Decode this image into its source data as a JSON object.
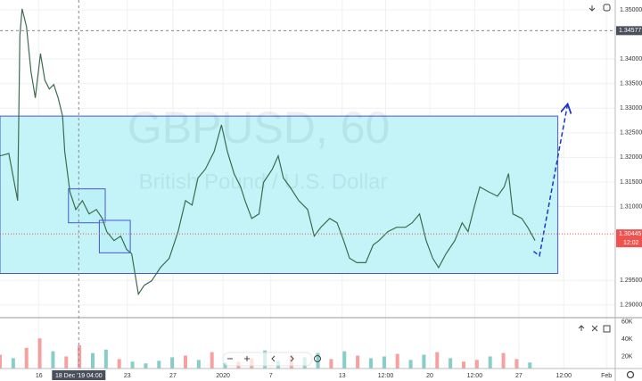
{
  "chart_data": {
    "type": "line",
    "symbol_title": "GBPUSD, 60",
    "symbol_description": "British Pound / U.S. Dollar",
    "color": "#3d6b4f",
    "xlim": [
      0,
      836
    ],
    "ylim": [
      1.2876,
      1.352
    ],
    "grid": true,
    "yticks": [
      {
        "value": 1.35,
        "label": "1.35000"
      },
      {
        "value": 1.34,
        "label": "1.34000"
      },
      {
        "value": 1.335,
        "label": "1.33500"
      },
      {
        "value": 1.33,
        "label": "1.33000"
      },
      {
        "value": 1.325,
        "label": "1.32500"
      },
      {
        "value": 1.32,
        "label": "1.32000"
      },
      {
        "value": 1.315,
        "label": "1.31500"
      },
      {
        "value": 1.31,
        "label": "1.31000"
      },
      {
        "value": 1.295,
        "label": "1.29500"
      },
      {
        "value": 1.29,
        "label": "1.29000"
      }
    ],
    "xticks": [
      {
        "value": 53,
        "label": "16"
      },
      {
        "value": 173,
        "label": "23"
      },
      {
        "value": 235,
        "label": "27"
      },
      {
        "value": 303,
        "label": "2020"
      },
      {
        "value": 368,
        "label": "7"
      },
      {
        "value": 465,
        "label": "13"
      },
      {
        "value": 524,
        "label": "12:00"
      },
      {
        "value": 584,
        "label": "20"
      },
      {
        "value": 645,
        "label": "12:00"
      },
      {
        "value": 705,
        "label": "27"
      },
      {
        "value": 766,
        "label": "12:00"
      },
      {
        "value": 824,
        "label": "Feb"
      }
    ],
    "crosshair": {
      "price": {
        "value": 1.34577,
        "label": "1.34577"
      },
      "time": {
        "value": 107,
        "label": "18 Dec '19 04:00"
      }
    },
    "last_price": {
      "value": 1.30445,
      "label": "1.30445",
      "countdown": "12:02"
    },
    "x": [
      0,
      12,
      24,
      27,
      30,
      36,
      42,
      48,
      55,
      61,
      67,
      73,
      79,
      85,
      88,
      95,
      103,
      112,
      121,
      131,
      139,
      145,
      155,
      164,
      172,
      179,
      184,
      188,
      196,
      206,
      218,
      230,
      242,
      252,
      261,
      269,
      279,
      291,
      301,
      309,
      318,
      327,
      333,
      342,
      352,
      358,
      370,
      378,
      385,
      394,
      406,
      418,
      427,
      436,
      448,
      458,
      467,
      475,
      485,
      497,
      507,
      515,
      527,
      539,
      551,
      560,
      570,
      579,
      588,
      596,
      606,
      618,
      628,
      636,
      645,
      652,
      664,
      676,
      685,
      691,
      697,
      709,
      717,
      727
    ],
    "values": [
      1.3203,
      1.3208,
      1.3112,
      1.3448,
      1.3502,
      1.3466,
      1.3375,
      1.3321,
      1.3411,
      1.3357,
      1.3339,
      1.3348,
      1.3321,
      1.3284,
      1.3212,
      1.313,
      1.3094,
      1.3112,
      1.3085,
      1.3094,
      1.3076,
      1.3049,
      1.3031,
      1.304,
      1.3013,
      1.3004,
      1.2958,
      1.2922,
      1.294,
      1.2949,
      1.2976,
      1.2995,
      1.3049,
      1.3112,
      1.3103,
      1.3158,
      1.3176,
      1.3212,
      1.3266,
      1.3212,
      1.3167,
      1.314,
      1.3112,
      1.3076,
      1.3085,
      1.3149,
      1.3176,
      1.3203,
      1.3158,
      1.314,
      1.3112,
      1.3094,
      1.304,
      1.3058,
      1.3076,
      1.3067,
      1.3031,
      1.2995,
      1.2986,
      1.2986,
      1.3022,
      1.3031,
      1.3049,
      1.3058,
      1.3058,
      1.3067,
      1.3085,
      1.3031,
      1.2995,
      1.2976,
      1.3004,
      1.3031,
      1.3067,
      1.3049,
      1.3103,
      1.314,
      1.313,
      1.3121,
      1.314,
      1.3167,
      1.3085,
      1.3076,
      1.3058,
      1.3031
    ],
    "zones": [
      {
        "x0": 0,
        "x1": 758,
        "y0": 1.2964,
        "y1": 1.3284
      },
      {
        "x0": 93,
        "x1": 143,
        "y0": 1.3067,
        "y1": 1.3136
      },
      {
        "x0": 135,
        "x1": 177,
        "y0": 1.3006,
        "y1": 1.3072
      }
    ],
    "projection": {
      "x": [
        725,
        733,
        771
      ],
      "values": [
        1.3009,
        1.3,
        1.3306
      ],
      "color": "#1a35c9"
    },
    "volume": {
      "ylim": [
        6000,
        63000
      ],
      "yticks": [
        {
          "value": 20000,
          "label": "20K"
        },
        {
          "value": 40000,
          "label": "40K"
        },
        {
          "value": 60000,
          "label": "60K"
        }
      ],
      "x": [
        0,
        18,
        36,
        54,
        72,
        90,
        108,
        126,
        144,
        162,
        180,
        198,
        216,
        234,
        252,
        270,
        288,
        306,
        324,
        342,
        360,
        378,
        396,
        414,
        432,
        450,
        468,
        486,
        504,
        522,
        540,
        558,
        576,
        594,
        612,
        630,
        648,
        666,
        684,
        702,
        720
      ],
      "values": [
        22000,
        18000,
        30000,
        41000,
        26000,
        20000,
        33000,
        24000,
        28000,
        17000,
        14000,
        12000,
        15000,
        19000,
        21000,
        16000,
        25000,
        13000,
        14000,
        18000,
        27000,
        15000,
        22000,
        19000,
        24000,
        17000,
        26000,
        21000,
        18000,
        20000,
        23000,
        16000,
        22000,
        25000,
        18000,
        14000,
        16000,
        20000,
        24000,
        17000,
        13000
      ],
      "colors": [
        "#ef5350",
        "#26a69a",
        "#ef5350",
        "#ef5350",
        "#26a69a",
        "#ef5350",
        "#ef5350",
        "#26a69a",
        "#26a69a",
        "#ef5350",
        "#26a69a",
        "#26a69a",
        "#26a69a",
        "#26a69a",
        "#ef5350",
        "#26a69a",
        "#ef5350",
        "#26a69a",
        "#ef5350",
        "#ef5350",
        "#26a69a",
        "#26a69a",
        "#ef5350",
        "#26a69a",
        "#26a69a",
        "#ef5350",
        "#26a69a",
        "#ef5350",
        "#26a69a",
        "#26a69a",
        "#ef5350",
        "#26a69a",
        "#26a69a",
        "#ef5350",
        "#26a69a",
        "#ef5350",
        "#ef5350",
        "#26a69a",
        "#ef5350",
        "#ef5350",
        "#26a69a"
      ]
    }
  }
}
